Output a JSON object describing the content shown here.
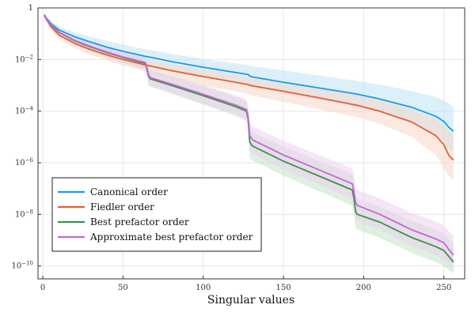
{
  "chart_data": {
    "type": "line",
    "title": "",
    "xlabel": "Singular values",
    "ylabel": "",
    "y_scale": "log10",
    "xlim": [
      -3,
      263
    ],
    "ylim_log10": [
      -10.5,
      0
    ],
    "grid": true,
    "legend_position": "bottom-left",
    "x_ticks": [
      {
        "value": 0,
        "label": "0"
      },
      {
        "value": 50,
        "label": "50"
      },
      {
        "value": 100,
        "label": "100"
      },
      {
        "value": 150,
        "label": "150"
      },
      {
        "value": 200,
        "label": "200"
      },
      {
        "value": 250,
        "label": "250"
      }
    ],
    "y_ticks": [
      {
        "log10": 0,
        "base": "1",
        "exp": ""
      },
      {
        "log10": -2,
        "base": "10",
        "exp": "−2"
      },
      {
        "log10": -4,
        "base": "10",
        "exp": "−4"
      },
      {
        "log10": -6,
        "base": "10",
        "exp": "−6"
      },
      {
        "log10": -8,
        "base": "10",
        "exp": "−8"
      },
      {
        "log10": -10,
        "base": "10",
        "exp": "−10"
      }
    ],
    "x": [
      1,
      2,
      5,
      10,
      20,
      30,
      40,
      50,
      60,
      64,
      65,
      66,
      67,
      80,
      100,
      120,
      127,
      128,
      129,
      130,
      131,
      150,
      170,
      190,
      193,
      194,
      195,
      196,
      210,
      230,
      245,
      250,
      253,
      256
    ],
    "series": [
      {
        "name": "Canonical order",
        "color": "#1a9bea",
        "band_color": "#bfe3f8",
        "log10_mean": [
          -0.3,
          -0.38,
          -0.6,
          -0.85,
          -1.12,
          -1.33,
          -1.52,
          -1.68,
          -1.82,
          -1.88,
          -1.89,
          -1.9,
          -1.91,
          -2.08,
          -2.3,
          -2.5,
          -2.57,
          -2.58,
          -2.64,
          -2.66,
          -2.68,
          -2.88,
          -3.08,
          -3.28,
          -3.31,
          -3.32,
          -3.33,
          -3.34,
          -3.53,
          -3.85,
          -4.2,
          -4.4,
          -4.62,
          -4.78
        ],
        "log10_upper": [
          -0.22,
          -0.3,
          -0.5,
          -0.72,
          -0.95,
          -1.12,
          -1.28,
          -1.42,
          -1.55,
          -1.6,
          -1.61,
          -1.62,
          -1.63,
          -1.78,
          -1.98,
          -2.15,
          -2.2,
          -2.21,
          -2.24,
          -2.25,
          -2.26,
          -2.42,
          -2.6,
          -2.78,
          -2.8,
          -2.81,
          -2.82,
          -2.83,
          -2.98,
          -3.22,
          -3.45,
          -3.58,
          -3.7,
          -3.86
        ],
        "log10_lower": [
          -0.36,
          -0.46,
          -0.72,
          -1.0,
          -1.3,
          -1.55,
          -1.76,
          -1.94,
          -2.1,
          -2.18,
          -2.2,
          -2.22,
          -2.24,
          -2.42,
          -2.66,
          -2.88,
          -2.96,
          -2.98,
          -3.05,
          -3.08,
          -3.1,
          -3.34,
          -3.56,
          -3.8,
          -3.84,
          -3.85,
          -3.86,
          -3.87,
          -4.08,
          -4.46,
          -4.9,
          -5.2,
          -5.45,
          -5.56
        ]
      },
      {
        "name": "Fiedler order",
        "color": "#e0632e",
        "band_color": "#f5d7c9",
        "log10_mean": [
          -0.25,
          -0.42,
          -0.72,
          -1.05,
          -1.38,
          -1.62,
          -1.82,
          -2.0,
          -2.15,
          -2.22,
          -2.23,
          -2.24,
          -2.25,
          -2.43,
          -2.66,
          -2.88,
          -2.96,
          -2.97,
          -3.0,
          -3.01,
          -3.02,
          -3.23,
          -3.46,
          -3.7,
          -3.74,
          -3.75,
          -3.76,
          -3.77,
          -4.0,
          -4.42,
          -4.95,
          -5.3,
          -5.7,
          -5.9
        ],
        "log10_upper": [
          -0.2,
          -0.35,
          -0.62,
          -0.92,
          -1.22,
          -1.44,
          -1.62,
          -1.78,
          -1.92,
          -1.98,
          -1.99,
          -2.0,
          -2.01,
          -2.17,
          -2.38,
          -2.57,
          -2.64,
          -2.65,
          -2.67,
          -2.68,
          -2.69,
          -2.88,
          -3.08,
          -3.3,
          -3.33,
          -3.34,
          -3.35,
          -3.36,
          -3.56,
          -3.92,
          -4.32,
          -4.55,
          -4.75,
          -4.9
        ],
        "log10_lower": [
          -0.32,
          -0.5,
          -0.84,
          -1.2,
          -1.56,
          -1.82,
          -2.04,
          -2.24,
          -2.4,
          -2.48,
          -2.5,
          -2.52,
          -2.54,
          -2.74,
          -3.0,
          -3.24,
          -3.33,
          -3.34,
          -3.38,
          -3.39,
          -3.4,
          -3.64,
          -3.9,
          -4.16,
          -4.2,
          -4.21,
          -4.22,
          -4.23,
          -4.5,
          -5.0,
          -5.7,
          -6.2,
          -6.5,
          -6.7
        ]
      },
      {
        "name": "Best prefactor order",
        "color": "#3a9247",
        "band_color": "#c3e3c7",
        "log10_mean": [
          -0.3,
          -0.4,
          -0.66,
          -0.95,
          -1.28,
          -1.52,
          -1.73,
          -1.92,
          -2.09,
          -2.15,
          -2.4,
          -2.65,
          -2.75,
          -3.0,
          -3.4,
          -3.82,
          -4.0,
          -4.3,
          -5.2,
          -5.3,
          -5.36,
          -5.94,
          -6.46,
          -6.98,
          -7.06,
          -7.4,
          -7.9,
          -8.0,
          -8.3,
          -8.9,
          -9.25,
          -9.4,
          -9.62,
          -9.85
        ],
        "log10_upper": [
          -0.24,
          -0.33,
          -0.56,
          -0.82,
          -1.12,
          -1.35,
          -1.53,
          -1.7,
          -1.86,
          -1.91,
          -2.1,
          -2.35,
          -2.45,
          -2.68,
          -3.05,
          -3.45,
          -3.62,
          -3.9,
          -4.6,
          -4.75,
          -4.82,
          -5.38,
          -5.88,
          -6.38,
          -6.46,
          -6.8,
          -7.25,
          -7.4,
          -7.7,
          -8.25,
          -8.6,
          -8.75,
          -8.95,
          -9.15
        ],
        "log10_lower": [
          -0.38,
          -0.48,
          -0.76,
          -1.08,
          -1.44,
          -1.7,
          -1.92,
          -2.13,
          -2.32,
          -2.38,
          -2.7,
          -3.0,
          -3.05,
          -3.32,
          -3.75,
          -4.18,
          -4.38,
          -4.7,
          -5.8,
          -5.88,
          -5.92,
          -6.5,
          -7.05,
          -7.58,
          -7.66,
          -8.0,
          -8.5,
          -8.6,
          -8.9,
          -9.5,
          -9.85,
          -10.0,
          -10.15,
          -10.3
        ]
      },
      {
        "name": "Approximate best prefactor order",
        "color": "#c565d2",
        "band_color": "#eccff1",
        "log10_mean": [
          -0.3,
          -0.4,
          -0.65,
          -0.94,
          -1.26,
          -1.5,
          -1.71,
          -1.9,
          -2.06,
          -2.12,
          -2.35,
          -2.6,
          -2.7,
          -2.95,
          -3.35,
          -3.76,
          -3.94,
          -4.2,
          -4.95,
          -5.05,
          -5.12,
          -5.7,
          -6.22,
          -6.74,
          -6.82,
          -7.15,
          -7.55,
          -7.65,
          -8.0,
          -8.6,
          -8.95,
          -9.1,
          -9.35,
          -9.58
        ],
        "log10_upper": [
          -0.24,
          -0.33,
          -0.55,
          -0.81,
          -1.11,
          -1.33,
          -1.51,
          -1.68,
          -1.83,
          -1.88,
          -2.05,
          -2.3,
          -2.4,
          -2.62,
          -2.98,
          -3.38,
          -3.55,
          -3.8,
          -4.4,
          -4.52,
          -4.6,
          -5.15,
          -5.65,
          -6.15,
          -6.23,
          -6.55,
          -6.95,
          -7.05,
          -7.38,
          -7.95,
          -8.28,
          -8.42,
          -8.65,
          -8.85
        ],
        "log10_lower": [
          -0.37,
          -0.47,
          -0.75,
          -1.07,
          -1.42,
          -1.68,
          -1.9,
          -2.1,
          -2.28,
          -2.35,
          -2.65,
          -2.95,
          -3.0,
          -3.26,
          -3.7,
          -4.12,
          -4.32,
          -4.6,
          -5.5,
          -5.58,
          -5.64,
          -6.25,
          -6.78,
          -7.32,
          -7.4,
          -7.75,
          -8.15,
          -8.25,
          -8.6,
          -9.22,
          -9.58,
          -9.75,
          -9.98,
          -10.15
        ]
      }
    ]
  }
}
